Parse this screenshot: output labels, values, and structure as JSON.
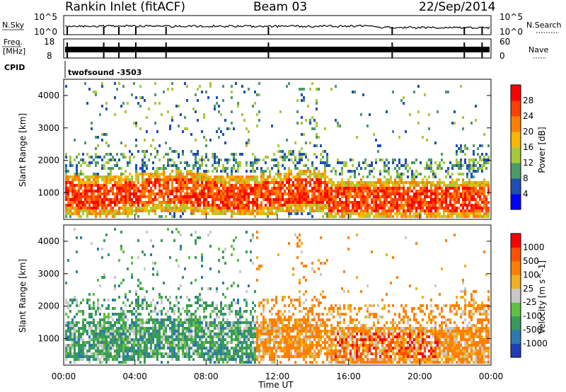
{
  "header": {
    "station": "Rankin Inlet (fitACF)",
    "beam": "Beam 03",
    "date": "22/Sep/2014"
  },
  "top_panels": {
    "nsky_label": "N.Sky",
    "nsky_ticks": [
      "10^5",
      "10^0"
    ],
    "nsearch_label": "N.Search",
    "nsearch_ticks": [
      "10^5",
      "10^0"
    ],
    "freq_label": "Freq.",
    "freq_unit": "[MHz]",
    "freq_ticks": [
      "18",
      "8"
    ],
    "nave_label": "Nave",
    "nave_ticks": [
      "60",
      "0"
    ],
    "cpid_label": "CPID",
    "cpid_value": "twofsound -3503"
  },
  "chart_data": [
    {
      "type": "heatmap",
      "name": "power",
      "xlabel": "",
      "ylabel": "Slant Range [km]",
      "xlim": [
        0,
        24
      ],
      "ylim": [
        180,
        4500
      ],
      "yticks": [
        1000,
        2000,
        3000,
        4000
      ],
      "colorbar": {
        "label": "Power [dB]",
        "ticks": [
          "4",
          "8",
          "12",
          "16",
          "20",
          "24",
          "28"
        ],
        "colors": [
          "#0000ff",
          "#1f4fb4",
          "#4a9a6a",
          "#a8c83c",
          "#f7b800",
          "#ff8000",
          "#ff4000",
          "#ff0000"
        ]
      }
    },
    {
      "type": "heatmap",
      "name": "velocity",
      "xlabel": "Time UT",
      "ylabel": "Slant Range [km]",
      "xlim": [
        0,
        24
      ],
      "ylim": [
        180,
        4500
      ],
      "xticks": [
        "00:00",
        "04:00",
        "08:00",
        "12:00",
        "16:00",
        "20:00",
        "00:00"
      ],
      "yticks": [
        1000,
        2000,
        3000,
        4000
      ],
      "colorbar": {
        "label": "Velocity [m s^-1]",
        "ticks": [
          "1000",
          "500",
          "100",
          "25",
          "-25",
          "-100",
          "-500",
          "-1000"
        ],
        "colors": [
          "#1e3fb4",
          "#2a7ab0",
          "#3a9a5a",
          "#60c040",
          "#c8c8c8",
          "#f0b020",
          "#ff8000",
          "#ff5000",
          "#ff0000"
        ]
      }
    }
  ]
}
